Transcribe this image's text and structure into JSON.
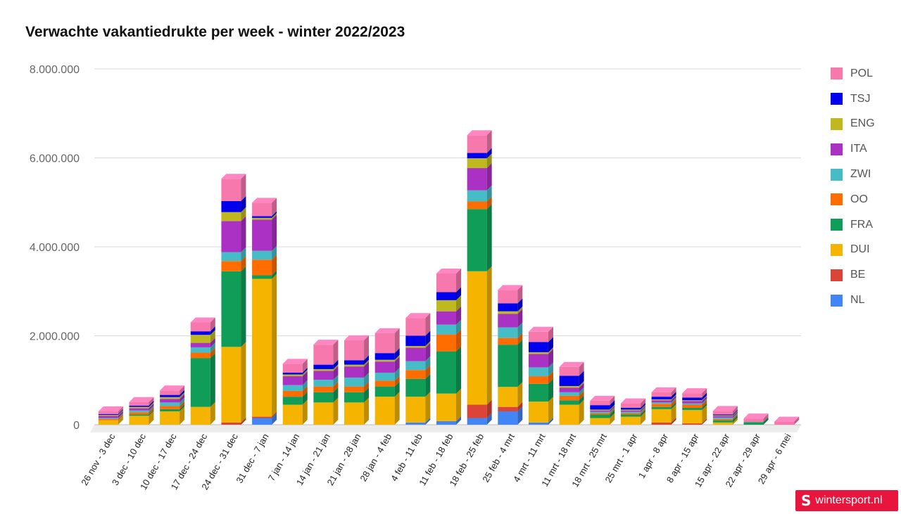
{
  "title": "Verwachte vakantiedrukte per week - winter 2022/2023",
  "brand": "wintersport.nl",
  "chart_data": {
    "type": "bar",
    "stacked": true,
    "title": "Verwachte vakantiedrukte per week - winter 2022/2023",
    "ylim": [
      0,
      8000000
    ],
    "yticks": [
      "0",
      "2.000.000",
      "4.000.000",
      "6.000.000",
      "8.000.000"
    ],
    "ytick_values": [
      0,
      2000000,
      4000000,
      6000000,
      8000000
    ],
    "grid": true,
    "legend_position": "right",
    "categories": [
      "26 nov - 3 dec",
      "3 dec - 10 dec",
      "10 dec - 17 dec",
      "17 dec - 24 dec",
      "24 dec - 31 dec",
      "31 dec - 7 jan",
      "7 jan - 14 jan",
      "14 jan - 21 jan",
      "21 jan - 28 jan",
      "28 jan - 4 feb",
      "4 feb - 11 feb",
      "11 feb - 18 feb",
      "18 feb - 25 feb",
      "25 feb - 4 mrt",
      "4 mrt - 11 mrt",
      "11 mrt - 18 mrt",
      "18 mrt - 25 mrt",
      "25 mrt - 1 apr",
      "1 apr - 8 apr",
      "8 apr - 15 apr",
      "15 apr - 22 apr",
      "22 apr - 29 apr",
      "29 apr - 6 mei"
    ],
    "series": [
      {
        "name": "NL",
        "color": "#4285f4",
        "values": [
          0,
          0,
          0,
          0,
          0,
          150000,
          0,
          0,
          0,
          0,
          50000,
          80000,
          150000,
          300000,
          50000,
          0,
          0,
          0,
          0,
          0,
          0,
          0,
          0
        ]
      },
      {
        "name": "BE",
        "color": "#db4437",
        "values": [
          0,
          0,
          0,
          0,
          50000,
          30000,
          0,
          0,
          0,
          0,
          0,
          0,
          300000,
          100000,
          0,
          0,
          0,
          0,
          50000,
          30000,
          0,
          0,
          0
        ]
      },
      {
        "name": "DUI",
        "color": "#f4b400",
        "values": [
          100000,
          200000,
          300000,
          400000,
          1700000,
          3100000,
          450000,
          500000,
          500000,
          630000,
          580000,
          620000,
          3000000,
          450000,
          470000,
          450000,
          150000,
          180000,
          300000,
          300000,
          50000,
          0,
          0
        ]
      },
      {
        "name": "FRA",
        "color": "#0f9d58",
        "values": [
          0,
          30000,
          50000,
          1100000,
          1700000,
          80000,
          180000,
          230000,
          230000,
          230000,
          400000,
          950000,
          1400000,
          950000,
          400000,
          100000,
          80000,
          50000,
          50000,
          50000,
          50000,
          60000,
          0
        ]
      },
      {
        "name": "OO",
        "color": "#ff6d01",
        "values": [
          30000,
          50000,
          70000,
          120000,
          230000,
          350000,
          130000,
          130000,
          130000,
          130000,
          200000,
          380000,
          170000,
          150000,
          170000,
          100000,
          30000,
          30000,
          70000,
          70000,
          30000,
          0,
          0
        ]
      },
      {
        "name": "ZWI",
        "color": "#46bdc6",
        "values": [
          20000,
          40000,
          80000,
          120000,
          200000,
          200000,
          130000,
          150000,
          200000,
          180000,
          200000,
          220000,
          250000,
          240000,
          200000,
          80000,
          30000,
          30000,
          30000,
          30000,
          30000,
          0,
          0
        ]
      },
      {
        "name": "ITA",
        "color": "#ab30c4",
        "values": [
          50000,
          50000,
          80000,
          100000,
          700000,
          700000,
          200000,
          200000,
          250000,
          250000,
          300000,
          300000,
          500000,
          300000,
          300000,
          100000,
          30000,
          30000,
          50000,
          50000,
          30000,
          0,
          0
        ]
      },
      {
        "name": "ENG",
        "color": "#bfb81f",
        "values": [
          20000,
          30000,
          40000,
          180000,
          200000,
          40000,
          40000,
          40000,
          40000,
          40000,
          40000,
          250000,
          220000,
          60000,
          40000,
          40000,
          20000,
          20000,
          20000,
          20000,
          20000,
          0,
          0
        ]
      },
      {
        "name": "TSJ",
        "color": "#0000ee",
        "values": [
          20000,
          30000,
          50000,
          80000,
          250000,
          40000,
          40000,
          100000,
          100000,
          150000,
          230000,
          180000,
          120000,
          180000,
          230000,
          230000,
          100000,
          40000,
          60000,
          60000,
          20000,
          0,
          0
        ]
      },
      {
        "name": "POL",
        "color": "#f678ad",
        "values": [
          60000,
          80000,
          100000,
          200000,
          500000,
          300000,
          200000,
          450000,
          450000,
          450000,
          400000,
          420000,
          400000,
          300000,
          230000,
          200000,
          100000,
          100000,
          100000,
          100000,
          80000,
          80000,
          70000
        ]
      }
    ]
  }
}
